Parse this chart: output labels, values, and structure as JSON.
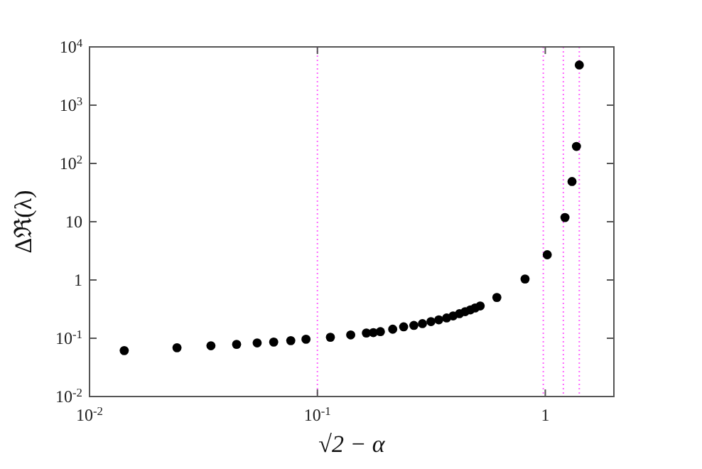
{
  "chart_data": {
    "type": "scatter",
    "xlabel": "√2 − α",
    "ylabel": "Δℜ(λ)",
    "log": "xy",
    "grid": false,
    "marker": "circle",
    "xlim": [
      0.01,
      2
    ],
    "ylim": [
      0.01,
      10000
    ],
    "xticks": [
      {
        "value": 0.01,
        "label": "10$^{-2}$"
      },
      {
        "value": 0.1,
        "label": "10$^{-1}$"
      },
      1
    ],
    "yticks": [
      {
        "value": 0.01,
        "label": "10$^{-2}$"
      },
      {
        "value": 0.1,
        "label": "10$^{-1}$"
      },
      1,
      10,
      {
        "value": 100,
        "label": "10$^{2}$"
      },
      {
        "value": 1000,
        "label": "10$^{3}$"
      },
      {
        "value": 10000,
        "label": "10$^{4}$"
      }
    ],
    "series": [
      {
        "color": "#000000",
        "x": [
          0.0142,
          0.0242,
          0.0341,
          0.0442,
          0.0544,
          0.0643,
          0.0764,
          0.0891,
          0.114,
          0.14,
          0.164,
          0.176,
          0.189,
          0.214,
          0.239,
          0.265,
          0.289,
          0.315,
          0.341,
          0.369,
          0.394,
          0.42,
          0.445,
          0.469,
          0.492,
          0.518,
          0.613,
          0.815,
          1.02,
          1.22,
          1.31,
          1.37,
          1.41
        ],
        "values": [
          0.0614,
          0.0687,
          0.0743,
          0.0785,
          0.0832,
          0.086,
          0.091,
          0.0962,
          0.104,
          0.114,
          0.123,
          0.125,
          0.13,
          0.143,
          0.157,
          0.166,
          0.178,
          0.193,
          0.207,
          0.223,
          0.242,
          0.264,
          0.286,
          0.307,
          0.331,
          0.358,
          0.501,
          1.04,
          2.71,
          11.8,
          49,
          196,
          4900
        ]
      }
    ],
    "ref_lines": [
      {
        "axis": "x",
        "value": 0.1,
        "color": "#ff66ff",
        "line_style": "dotted"
      },
      {
        "axis": "x",
        "value": 0.98,
        "color": "#ff66ff",
        "line_style": "dotted"
      },
      {
        "axis": "x",
        "value": 1.2,
        "color": "#ff66ff",
        "line_style": "dotted"
      },
      {
        "axis": "x",
        "value": 1.41,
        "color": "#ff66ff",
        "line_style": "dotted"
      }
    ]
  }
}
